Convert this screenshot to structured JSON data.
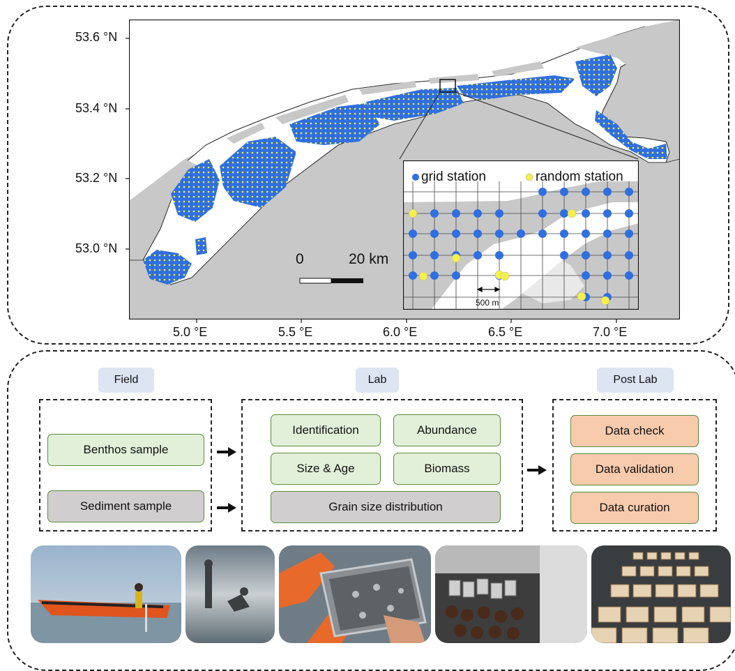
{
  "map": {
    "lat_labels": [
      "53.6 °N",
      "53.4 °N",
      "53.2 °N",
      "53.0 °N"
    ],
    "lon_labels": [
      "5.0 °E",
      "5.5 °E",
      "6.0 °E",
      "6.5 °E",
      "7.0 °E"
    ],
    "scale_bar": {
      "start": "0",
      "end": "20 km"
    },
    "inset": {
      "legend_grid": "grid station",
      "legend_random": "random station",
      "spacing_label": "500 m"
    },
    "colors": {
      "land": "#c8c8c8",
      "water": "#ffffff",
      "grid_station": "#2f6fe0",
      "random_station": "#f5f04a"
    }
  },
  "workflow": {
    "field": {
      "title": "Field",
      "steps": [
        "Benthos sample",
        "Sediment sample"
      ]
    },
    "lab": {
      "title": "Lab",
      "steps": [
        "Identification",
        "Abundance",
        "Size & Age",
        "Biomass",
        "Grain size distribution"
      ]
    },
    "post_lab": {
      "title": "Post Lab",
      "steps": [
        "Data check",
        "Data validation",
        "Data curation"
      ]
    },
    "colors": {
      "header": "#dde4f2",
      "biota": "#e2f0d9",
      "sediment": "#d0cece",
      "data": "#f8cbad"
    }
  },
  "photos": [
    "boat-photo",
    "tidal-flat-photo",
    "sieve-photo",
    "sample-jars-photo",
    "sample-trays-photo"
  ]
}
